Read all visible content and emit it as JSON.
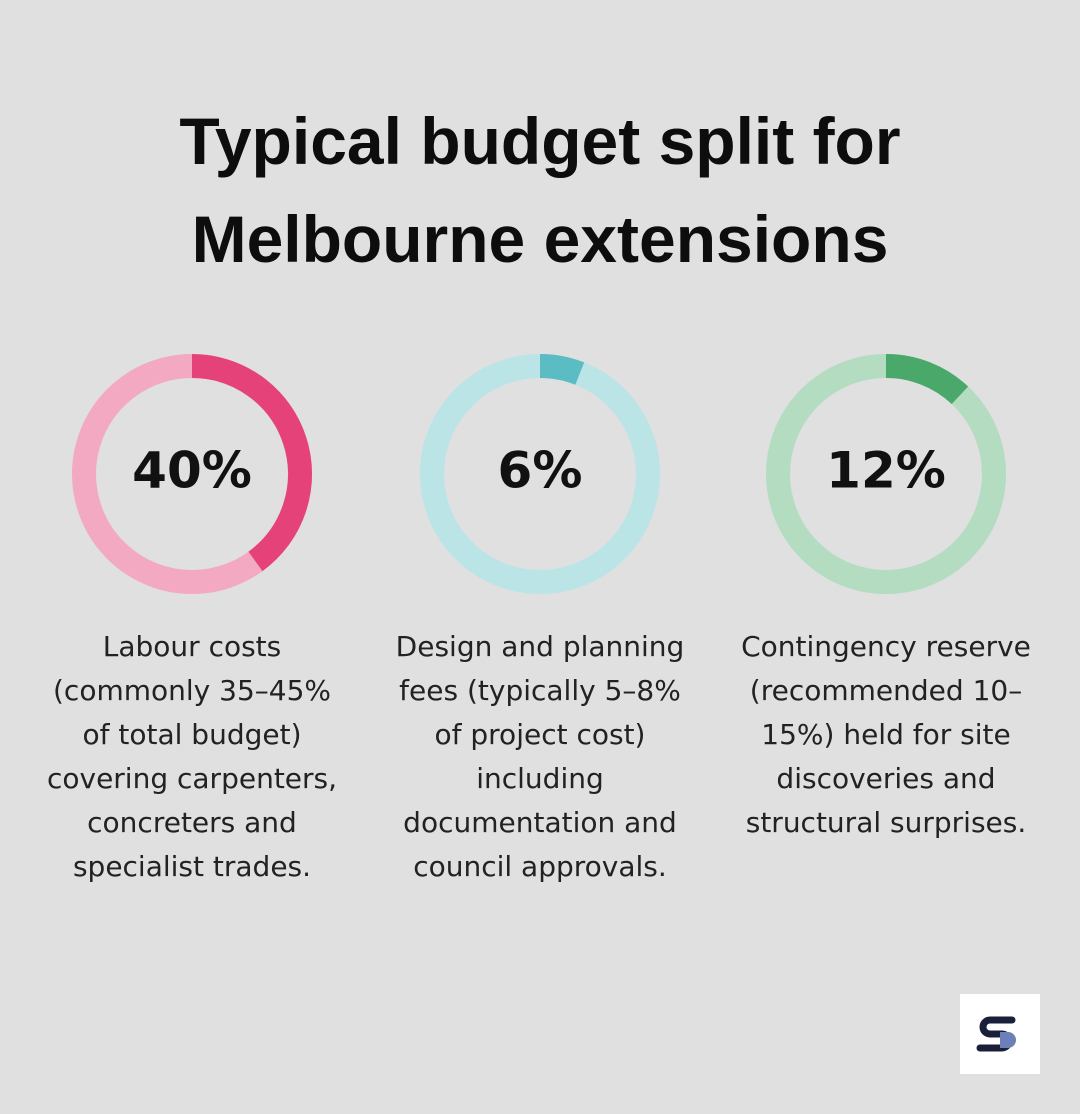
{
  "title": "Typical budget split for Melbourne extensions",
  "chart_data": [
    {
      "type": "donut",
      "values": [
        40
      ],
      "value_labels": [
        "40%"
      ],
      "color": "#e6427a",
      "track_color": "#f3a9c1",
      "caption": [
        "Labour costs",
        "(commonly 35–45%",
        "of total budget)",
        "covering carpenters,",
        "concreters and",
        "specialist trades."
      ]
    },
    {
      "type": "donut",
      "values": [
        6
      ],
      "value_labels": [
        "6%"
      ],
      "color": "#5bbcc4",
      "track_color": "#bbe4e7",
      "caption": [
        "Design and planning",
        "fees (typically 5–8%",
        "of project cost)",
        "including",
        "documentation and",
        "council approvals."
      ]
    },
    {
      "type": "donut",
      "values": [
        12
      ],
      "value_labels": [
        "12%"
      ],
      "color": "#4aa86a",
      "track_color": "#b3dcc1",
      "caption": [
        "Contingency reserve",
        "(recommended 10–",
        "15%) held for site",
        "discoveries and",
        "structural surprises."
      ]
    }
  ]
}
